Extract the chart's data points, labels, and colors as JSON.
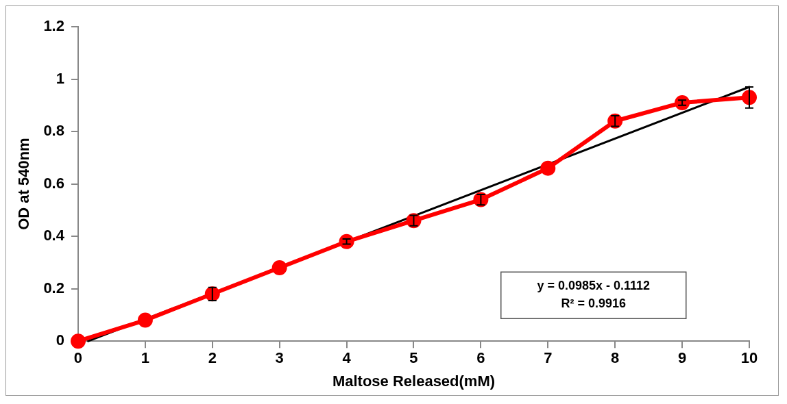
{
  "chart_data": {
    "type": "line",
    "xlabel": "Maltose Released(mM)",
    "ylabel": "OD at 540nm",
    "x": [
      0,
      1,
      2,
      3,
      4,
      5,
      6,
      7,
      8,
      9,
      10
    ],
    "series": [
      {
        "color": "#ff0000",
        "values": [
          0,
          0.08,
          0.18,
          0.28,
          0.38,
          0.46,
          0.54,
          0.66,
          0.84,
          0.91,
          0.93
        ],
        "errors": [
          null,
          null,
          0.025,
          null,
          0.01,
          0.02,
          0.02,
          null,
          0.02,
          0.01,
          0.04
        ],
        "marker": "circle"
      },
      {
        "type": "line",
        "color": "#000000",
        "x": [
          0.15,
          10
        ],
        "values": [
          0,
          0.97
        ],
        "marker": "none"
      }
    ],
    "annotations": [
      "y = 0.0985x - 0.1112",
      "R² = 0.9916"
    ],
    "xlim": [
      0,
      10
    ],
    "xticks": [
      0,
      1,
      2,
      3,
      4,
      5,
      6,
      7,
      8,
      9,
      10
    ],
    "ylim": [
      0,
      1.2
    ],
    "yticks": [
      0,
      0.2,
      0.4,
      0.6,
      0.8,
      1,
      1.2
    ],
    "grid": false,
    "legend": false
  }
}
